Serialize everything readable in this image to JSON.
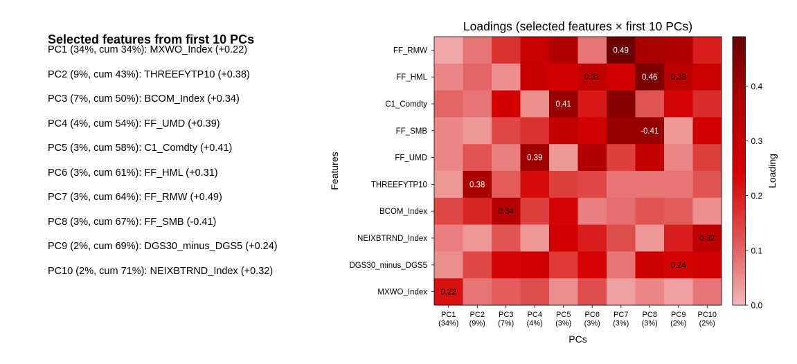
{
  "summary": {
    "title": "Selected features from first 10 PCs",
    "lines": [
      "PC1 (34%, cum 34%): MXWO_Index (+0.22)",
      "PC2 (9%, cum 43%): THREEFYTP10 (+0.38)",
      "PC3 (7%, cum 50%): BCOM_Index (+0.34)",
      "PC4 (4%, cum 54%): FF_UMD (+0.39)",
      "PC5 (3%, cum 58%): C1_Comdty (+0.41)",
      "PC6 (3%, cum 61%): FF_HML (+0.31)",
      "PC7 (3%, cum 64%): FF_RMW (+0.49)",
      "PC8 (3%, cum 67%): FF_SMB (-0.41)",
      "PC9 (2%, cum 69%): DGS30_minus_DGS5 (+0.24)",
      "PC10 (2%, cum 71%): NEIXBTRND_Index (+0.32)"
    ]
  },
  "chart_data": {
    "type": "heatmap",
    "title": "Loadings (selected features × first 10 PCs)",
    "xlabel": "PCs",
    "ylabel": "Features",
    "x_labels": [
      [
        "PC1",
        "(34%)"
      ],
      [
        "PC2",
        "(9%)"
      ],
      [
        "PC3",
        "(7%)"
      ],
      [
        "PC4",
        "(4%)"
      ],
      [
        "PC5",
        "(3%)"
      ],
      [
        "PC6",
        "(3%)"
      ],
      [
        "PC7",
        "(3%)"
      ],
      [
        "PC8",
        "(3%)"
      ],
      [
        "PC9",
        "(2%)"
      ],
      [
        "PC10",
        "(2%)"
      ]
    ],
    "y_labels": [
      "FF_RMW",
      "FF_HML",
      "C1_Comdty",
      "FF_SMB",
      "FF_UMD",
      "THREEFYTP10",
      "BCOM_Index",
      "NEIXBTRND_Index",
      "DGS30_minus_DGS5",
      "MXWO_Index"
    ],
    "values": [
      [
        0.02,
        0.08,
        0.17,
        0.28,
        0.36,
        0.08,
        0.49,
        0.38,
        0.36,
        0.2
      ],
      [
        0.06,
        0.1,
        0.05,
        0.29,
        0.25,
        0.31,
        0.26,
        0.46,
        0.33,
        0.28
      ],
      [
        0.1,
        0.08,
        0.25,
        0.05,
        0.41,
        0.21,
        0.44,
        0.12,
        0.24,
        0.18
      ],
      [
        0.06,
        0.04,
        0.14,
        0.17,
        0.3,
        0.25,
        0.41,
        -0.41,
        0.04,
        0.25
      ],
      [
        0.06,
        0.12,
        0.07,
        0.39,
        0.04,
        0.36,
        0.15,
        0.3,
        0.06,
        0.15
      ],
      [
        0.04,
        0.38,
        0.11,
        0.23,
        0.15,
        0.14,
        0.08,
        0.08,
        0.08,
        0.12
      ],
      [
        0.14,
        0.19,
        0.34,
        0.15,
        0.24,
        0.07,
        0.09,
        0.12,
        0.11,
        0.05
      ],
      [
        0.07,
        0.04,
        0.12,
        0.04,
        0.26,
        0.2,
        0.13,
        0.04,
        0.2,
        0.32
      ],
      [
        0.05,
        0.14,
        0.24,
        0.26,
        0.16,
        0.24,
        0.08,
        0.27,
        0.24,
        0.25
      ],
      [
        0.22,
        0.08,
        0.11,
        0.13,
        0.05,
        0.13,
        0.03,
        0.06,
        0.03,
        0.08
      ]
    ],
    "annotations": [
      {
        "row": 0,
        "col": 6,
        "text": "0.49"
      },
      {
        "row": 1,
        "col": 5,
        "text": "0.31"
      },
      {
        "row": 1,
        "col": 7,
        "text": "0.46"
      },
      {
        "row": 1,
        "col": 8,
        "text": "0.33"
      },
      {
        "row": 2,
        "col": 4,
        "text": "0.41"
      },
      {
        "row": 3,
        "col": 7,
        "text": "-0.41"
      },
      {
        "row": 4,
        "col": 3,
        "text": "0.39"
      },
      {
        "row": 5,
        "col": 1,
        "text": "0.38"
      },
      {
        "row": 6,
        "col": 2,
        "text": "0.34"
      },
      {
        "row": 7,
        "col": 9,
        "text": "0.32"
      },
      {
        "row": 8,
        "col": 8,
        "text": "0.24"
      },
      {
        "row": 9,
        "col": 0,
        "text": "0.22"
      }
    ],
    "colorbar": {
      "label": "Loading",
      "range": [
        0.0,
        0.49
      ],
      "ticks": [
        "0.0",
        "0.1",
        "0.2",
        "0.3",
        "0.4"
      ],
      "tick_values": [
        0.0,
        0.1,
        0.2,
        0.3,
        0.4
      ],
      "colormap": [
        "#f4b8b8",
        "#e15252",
        "#d40000",
        "#b00000",
        "#6b0000"
      ]
    },
    "grid": false
  }
}
